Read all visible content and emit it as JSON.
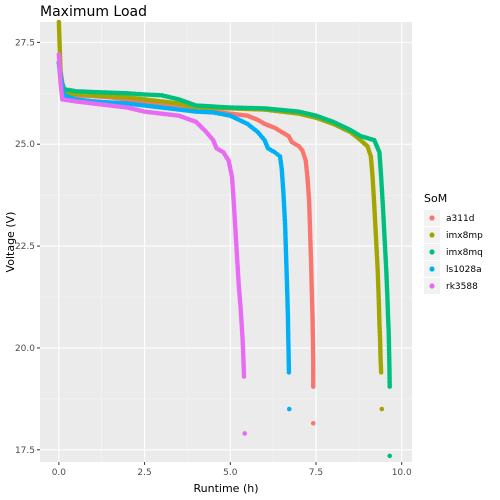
{
  "chart_data": {
    "type": "scatter",
    "title": "Maximum Load",
    "xlabel": "Runtime (h)",
    "ylabel": "Voltage (V)",
    "xlim": [
      -0.55,
      10.3
    ],
    "ylim": [
      17.2,
      28.0
    ],
    "x_ticks": [
      0.0,
      2.5,
      5.0,
      7.5,
      10.0
    ],
    "x_tick_labels": [
      "0.0",
      "2.5",
      "5.0",
      "7.5",
      "10.0"
    ],
    "y_ticks": [
      17.5,
      20.0,
      22.5,
      25.0,
      27.5
    ],
    "y_tick_labels": [
      "17.5",
      "20.0",
      "22.5",
      "25.0",
      "27.5"
    ],
    "grid": true,
    "legend_title": "SoM",
    "legend_position": "right",
    "series": [
      {
        "name": "a311d",
        "color": "#F8766D",
        "points": [
          [
            0.0,
            27.0
          ],
          [
            0.05,
            26.7
          ],
          [
            0.15,
            26.3
          ],
          [
            0.4,
            26.2
          ],
          [
            1.0,
            26.18
          ],
          [
            1.5,
            26.15
          ],
          [
            2.0,
            26.1
          ],
          [
            2.5,
            26.05
          ],
          [
            3.0,
            25.95
          ],
          [
            3.5,
            25.9
          ],
          [
            4.0,
            25.85
          ],
          [
            4.5,
            25.8
          ],
          [
            5.0,
            25.75
          ],
          [
            5.5,
            25.7
          ],
          [
            5.8,
            25.6
          ],
          [
            6.0,
            25.5
          ],
          [
            6.3,
            25.4
          ],
          [
            6.5,
            25.3
          ],
          [
            6.7,
            25.2
          ],
          [
            6.8,
            25.05
          ],
          [
            7.0,
            24.95
          ],
          [
            7.1,
            24.85
          ],
          [
            7.2,
            24.6
          ],
          [
            7.25,
            24.2
          ],
          [
            7.3,
            23.6
          ],
          [
            7.33,
            22.8
          ],
          [
            7.36,
            22.0
          ],
          [
            7.38,
            21.3
          ],
          [
            7.4,
            20.7
          ],
          [
            7.41,
            20.2
          ],
          [
            7.42,
            19.6
          ],
          [
            7.42,
            19.05
          ],
          [
            7.42,
            18.15
          ]
        ]
      },
      {
        "name": "imx8mp",
        "color": "#A3A500",
        "points": [
          [
            0.0,
            28.0
          ],
          [
            0.02,
            27.5
          ],
          [
            0.05,
            26.8
          ],
          [
            0.1,
            26.5
          ],
          [
            0.2,
            26.25
          ],
          [
            1.0,
            26.2
          ],
          [
            2.0,
            26.15
          ],
          [
            2.5,
            26.1
          ],
          [
            3.0,
            26.05
          ],
          [
            3.5,
            26.0
          ],
          [
            4.0,
            25.9
          ],
          [
            5.0,
            25.88
          ],
          [
            6.0,
            25.85
          ],
          [
            7.0,
            25.75
          ],
          [
            7.5,
            25.65
          ],
          [
            8.0,
            25.5
          ],
          [
            8.5,
            25.3
          ],
          [
            8.8,
            25.1
          ],
          [
            9.0,
            24.95
          ],
          [
            9.1,
            24.7
          ],
          [
            9.15,
            24.2
          ],
          [
            9.2,
            23.5
          ],
          [
            9.25,
            22.7
          ],
          [
            9.3,
            21.9
          ],
          [
            9.33,
            21.2
          ],
          [
            9.35,
            20.6
          ],
          [
            9.37,
            20.2
          ],
          [
            9.38,
            19.8
          ],
          [
            9.4,
            19.4
          ],
          [
            9.42,
            18.5
          ]
        ]
      },
      {
        "name": "imx8mq",
        "color": "#00BF7D",
        "points": [
          [
            0.0,
            27.0
          ],
          [
            0.05,
            26.6
          ],
          [
            0.15,
            26.35
          ],
          [
            0.5,
            26.3
          ],
          [
            1.0,
            26.28
          ],
          [
            2.0,
            26.25
          ],
          [
            2.5,
            26.22
          ],
          [
            3.0,
            26.2
          ],
          [
            3.5,
            26.1
          ],
          [
            4.0,
            25.95
          ],
          [
            5.0,
            25.9
          ],
          [
            6.0,
            25.88
          ],
          [
            7.0,
            25.8
          ],
          [
            7.5,
            25.7
          ],
          [
            8.0,
            25.55
          ],
          [
            8.5,
            25.35
          ],
          [
            8.8,
            25.2
          ],
          [
            9.0,
            25.15
          ],
          [
            9.2,
            25.1
          ],
          [
            9.35,
            24.8
          ],
          [
            9.4,
            24.2
          ],
          [
            9.45,
            23.5
          ],
          [
            9.5,
            22.7
          ],
          [
            9.55,
            21.9
          ],
          [
            9.58,
            21.3
          ],
          [
            9.6,
            20.8
          ],
          [
            9.62,
            20.4
          ],
          [
            9.63,
            20.0
          ],
          [
            9.64,
            19.6
          ],
          [
            9.65,
            19.05
          ],
          [
            9.65,
            17.35
          ]
        ]
      },
      {
        "name": "ls1028a",
        "color": "#00B0F6",
        "points": [
          [
            0.0,
            27.0
          ],
          [
            0.05,
            26.7
          ],
          [
            0.15,
            26.2
          ],
          [
            0.5,
            26.1
          ],
          [
            1.0,
            26.05
          ],
          [
            2.0,
            26.0
          ],
          [
            3.0,
            25.9
          ],
          [
            3.5,
            25.85
          ],
          [
            4.0,
            25.8
          ],
          [
            4.5,
            25.78
          ],
          [
            5.0,
            25.7
          ],
          [
            5.5,
            25.5
          ],
          [
            5.8,
            25.3
          ],
          [
            6.0,
            25.1
          ],
          [
            6.1,
            24.9
          ],
          [
            6.3,
            24.8
          ],
          [
            6.45,
            24.7
          ],
          [
            6.5,
            24.4
          ],
          [
            6.55,
            23.8
          ],
          [
            6.6,
            23.0
          ],
          [
            6.63,
            22.2
          ],
          [
            6.66,
            21.4
          ],
          [
            6.68,
            20.8
          ],
          [
            6.69,
            20.3
          ],
          [
            6.7,
            19.9
          ],
          [
            6.71,
            19.4
          ],
          [
            6.72,
            18.5
          ]
        ]
      },
      {
        "name": "rk3588",
        "color": "#E76BF3",
        "points": [
          [
            0.0,
            27.2
          ],
          [
            0.05,
            26.5
          ],
          [
            0.1,
            26.1
          ],
          [
            0.5,
            26.05
          ],
          [
            1.0,
            26.0
          ],
          [
            1.5,
            25.95
          ],
          [
            2.0,
            25.9
          ],
          [
            2.5,
            25.8
          ],
          [
            3.0,
            25.75
          ],
          [
            3.5,
            25.7
          ],
          [
            4.0,
            25.55
          ],
          [
            4.3,
            25.3
          ],
          [
            4.5,
            25.1
          ],
          [
            4.6,
            24.9
          ],
          [
            4.8,
            24.8
          ],
          [
            4.95,
            24.6
          ],
          [
            5.05,
            24.2
          ],
          [
            5.1,
            23.6
          ],
          [
            5.15,
            22.9
          ],
          [
            5.2,
            22.2
          ],
          [
            5.25,
            21.5
          ],
          [
            5.3,
            21.0
          ],
          [
            5.33,
            20.6
          ],
          [
            5.36,
            20.2
          ],
          [
            5.38,
            19.8
          ],
          [
            5.4,
            19.3
          ],
          [
            5.42,
            17.9
          ]
        ]
      }
    ]
  }
}
